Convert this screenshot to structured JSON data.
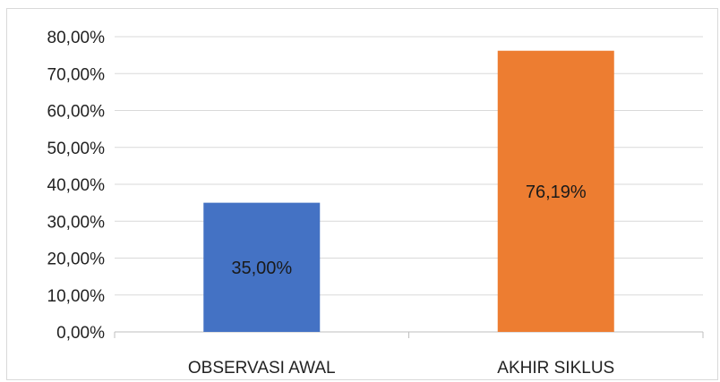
{
  "chart_data": {
    "type": "bar",
    "title": "",
    "xlabel": "",
    "ylabel": "",
    "categories": [
      "OBSERVASI AWAL",
      "AKHIR SIKLUS"
    ],
    "values": [
      35.0,
      76.19
    ],
    "data_labels": [
      "35,00%",
      "76,19%"
    ],
    "bar_colors": [
      "#4472c4",
      "#ed7d31"
    ],
    "ylim": [
      0,
      80
    ],
    "yticks": [
      0,
      10,
      20,
      30,
      40,
      50,
      60,
      70,
      80
    ],
    "ytick_labels": [
      "0,00%",
      "10,00%",
      "20,00%",
      "30,00%",
      "40,00%",
      "50,00%",
      "60,00%",
      "70,00%",
      "80,00%"
    ],
    "grid": true,
    "legend": false
  }
}
